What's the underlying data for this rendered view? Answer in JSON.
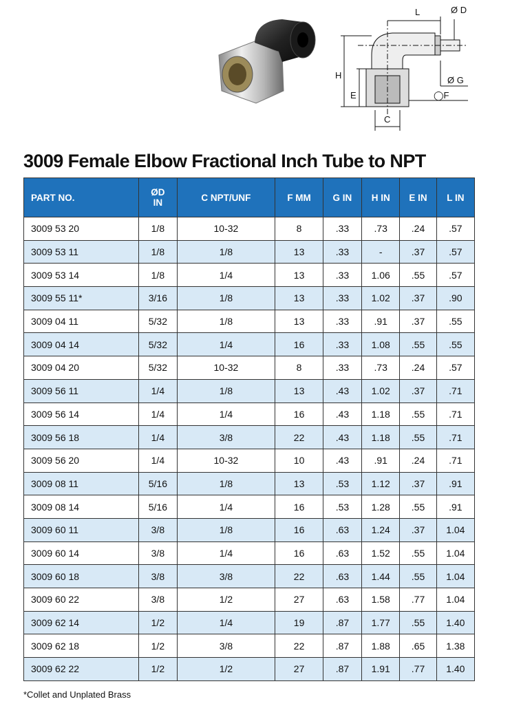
{
  "diagram": {
    "labels": [
      "L",
      "Ø D",
      "H",
      "E",
      "Ø G",
      "◯F",
      "C"
    ]
  },
  "title": "3009 Female Elbow Fractional Inch Tube to NPT",
  "table": {
    "header": [
      "PART NO.",
      "ØD\nIN",
      "C NPT/UNF",
      "F MM",
      "G IN",
      "H IN",
      "E IN",
      "L IN"
    ],
    "rows": [
      [
        "3009 53 20",
        "1/8",
        "10-32",
        "8",
        ".33",
        ".73",
        ".24",
        ".57"
      ],
      [
        "3009 53 11",
        "1/8",
        "1/8",
        "13",
        ".33",
        "-",
        ".37",
        ".57"
      ],
      [
        "3009 53 14",
        "1/8",
        "1/4",
        "13",
        ".33",
        "1.06",
        ".55",
        ".57"
      ],
      [
        "3009 55 11*",
        "3/16",
        "1/8",
        "13",
        ".33",
        "1.02",
        ".37",
        ".90"
      ],
      [
        "3009 04 11",
        "5/32",
        "1/8",
        "13",
        ".33",
        ".91",
        ".37",
        ".55"
      ],
      [
        "3009 04 14",
        "5/32",
        "1/4",
        "16",
        ".33",
        "1.08",
        ".55",
        ".55"
      ],
      [
        "3009 04 20",
        "5/32",
        "10-32",
        "8",
        ".33",
        ".73",
        ".24",
        ".57"
      ],
      [
        "3009 56 11",
        "1/4",
        "1/8",
        "13",
        ".43",
        "1.02",
        ".37",
        ".71"
      ],
      [
        "3009 56 14",
        "1/4",
        "1/4",
        "16",
        ".43",
        "1.18",
        ".55",
        ".71"
      ],
      [
        "3009 56 18",
        "1/4",
        "3/8",
        "22",
        ".43",
        "1.18",
        ".55",
        ".71"
      ],
      [
        "3009 56 20",
        "1/4",
        "10-32",
        "10",
        ".43",
        ".91",
        ".24",
        ".71"
      ],
      [
        "3009 08 11",
        "5/16",
        "1/8",
        "13",
        ".53",
        "1.12",
        ".37",
        ".91"
      ],
      [
        "3009 08 14",
        "5/16",
        "1/4",
        "16",
        ".53",
        "1.28",
        ".55",
        ".91"
      ],
      [
        "3009 60 11",
        "3/8",
        "1/8",
        "16",
        ".63",
        "1.24",
        ".37",
        "1.04"
      ],
      [
        "3009 60 14",
        "3/8",
        "1/4",
        "16",
        ".63",
        "1.52",
        ".55",
        "1.04"
      ],
      [
        "3009 60 18",
        "3/8",
        "3/8",
        "22",
        ".63",
        "1.44",
        ".55",
        "1.04"
      ],
      [
        "3009 60 22",
        "3/8",
        "1/2",
        "27",
        ".63",
        "1.58",
        ".77",
        "1.04"
      ],
      [
        "3009 62 14",
        "1/2",
        "1/4",
        "19",
        ".87",
        "1.77",
        ".55",
        "1.40"
      ],
      [
        "3009 62 18",
        "1/2",
        "3/8",
        "22",
        ".87",
        "1.88",
        ".65",
        "1.38"
      ],
      [
        "3009 62 22",
        "1/2",
        "1/2",
        "27",
        ".87",
        "1.91",
        ".77",
        "1.40"
      ]
    ]
  },
  "footnote": "*Collet and Unplated Brass"
}
